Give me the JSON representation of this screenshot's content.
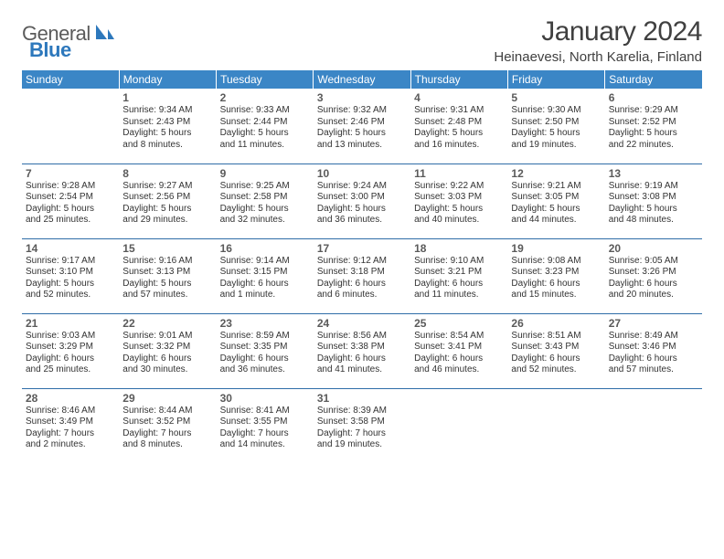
{
  "colors": {
    "header_bg": "#3b86c6",
    "header_text": "#ffffff",
    "row_border": "#2f6da8",
    "logo_grey": "#5b5b5b",
    "logo_blue": "#2d78bc",
    "title_color": "#404040",
    "daynum_color": "#5a5a5a",
    "cell_text": "#333333",
    "page_bg": "#ffffff"
  },
  "typography": {
    "title_fontsize": 30,
    "location_fontsize": 15,
    "weekday_fontsize": 12,
    "daynum_fontsize": 12,
    "cell_fontsize": 10
  },
  "logo": {
    "text1": "General",
    "text2": "Blue"
  },
  "title": "January 2024",
  "location": "Heinaevesi, North Karelia, Finland",
  "weekdays": [
    "Sunday",
    "Monday",
    "Tuesday",
    "Wednesday",
    "Thursday",
    "Friday",
    "Saturday"
  ],
  "weeks": [
    [
      {
        "day": "",
        "sunrise": "",
        "sunset": "",
        "daylight1": "",
        "daylight2": ""
      },
      {
        "day": "1",
        "sunrise": "Sunrise: 9:34 AM",
        "sunset": "Sunset: 2:43 PM",
        "daylight1": "Daylight: 5 hours",
        "daylight2": "and 8 minutes."
      },
      {
        "day": "2",
        "sunrise": "Sunrise: 9:33 AM",
        "sunset": "Sunset: 2:44 PM",
        "daylight1": "Daylight: 5 hours",
        "daylight2": "and 11 minutes."
      },
      {
        "day": "3",
        "sunrise": "Sunrise: 9:32 AM",
        "sunset": "Sunset: 2:46 PM",
        "daylight1": "Daylight: 5 hours",
        "daylight2": "and 13 minutes."
      },
      {
        "day": "4",
        "sunrise": "Sunrise: 9:31 AM",
        "sunset": "Sunset: 2:48 PM",
        "daylight1": "Daylight: 5 hours",
        "daylight2": "and 16 minutes."
      },
      {
        "day": "5",
        "sunrise": "Sunrise: 9:30 AM",
        "sunset": "Sunset: 2:50 PM",
        "daylight1": "Daylight: 5 hours",
        "daylight2": "and 19 minutes."
      },
      {
        "day": "6",
        "sunrise": "Sunrise: 9:29 AM",
        "sunset": "Sunset: 2:52 PM",
        "daylight1": "Daylight: 5 hours",
        "daylight2": "and 22 minutes."
      }
    ],
    [
      {
        "day": "7",
        "sunrise": "Sunrise: 9:28 AM",
        "sunset": "Sunset: 2:54 PM",
        "daylight1": "Daylight: 5 hours",
        "daylight2": "and 25 minutes."
      },
      {
        "day": "8",
        "sunrise": "Sunrise: 9:27 AM",
        "sunset": "Sunset: 2:56 PM",
        "daylight1": "Daylight: 5 hours",
        "daylight2": "and 29 minutes."
      },
      {
        "day": "9",
        "sunrise": "Sunrise: 9:25 AM",
        "sunset": "Sunset: 2:58 PM",
        "daylight1": "Daylight: 5 hours",
        "daylight2": "and 32 minutes."
      },
      {
        "day": "10",
        "sunrise": "Sunrise: 9:24 AM",
        "sunset": "Sunset: 3:00 PM",
        "daylight1": "Daylight: 5 hours",
        "daylight2": "and 36 minutes."
      },
      {
        "day": "11",
        "sunrise": "Sunrise: 9:22 AM",
        "sunset": "Sunset: 3:03 PM",
        "daylight1": "Daylight: 5 hours",
        "daylight2": "and 40 minutes."
      },
      {
        "day": "12",
        "sunrise": "Sunrise: 9:21 AM",
        "sunset": "Sunset: 3:05 PM",
        "daylight1": "Daylight: 5 hours",
        "daylight2": "and 44 minutes."
      },
      {
        "day": "13",
        "sunrise": "Sunrise: 9:19 AM",
        "sunset": "Sunset: 3:08 PM",
        "daylight1": "Daylight: 5 hours",
        "daylight2": "and 48 minutes."
      }
    ],
    [
      {
        "day": "14",
        "sunrise": "Sunrise: 9:17 AM",
        "sunset": "Sunset: 3:10 PM",
        "daylight1": "Daylight: 5 hours",
        "daylight2": "and 52 minutes."
      },
      {
        "day": "15",
        "sunrise": "Sunrise: 9:16 AM",
        "sunset": "Sunset: 3:13 PM",
        "daylight1": "Daylight: 5 hours",
        "daylight2": "and 57 minutes."
      },
      {
        "day": "16",
        "sunrise": "Sunrise: 9:14 AM",
        "sunset": "Sunset: 3:15 PM",
        "daylight1": "Daylight: 6 hours",
        "daylight2": "and 1 minute."
      },
      {
        "day": "17",
        "sunrise": "Sunrise: 9:12 AM",
        "sunset": "Sunset: 3:18 PM",
        "daylight1": "Daylight: 6 hours",
        "daylight2": "and 6 minutes."
      },
      {
        "day": "18",
        "sunrise": "Sunrise: 9:10 AM",
        "sunset": "Sunset: 3:21 PM",
        "daylight1": "Daylight: 6 hours",
        "daylight2": "and 11 minutes."
      },
      {
        "day": "19",
        "sunrise": "Sunrise: 9:08 AM",
        "sunset": "Sunset: 3:23 PM",
        "daylight1": "Daylight: 6 hours",
        "daylight2": "and 15 minutes."
      },
      {
        "day": "20",
        "sunrise": "Sunrise: 9:05 AM",
        "sunset": "Sunset: 3:26 PM",
        "daylight1": "Daylight: 6 hours",
        "daylight2": "and 20 minutes."
      }
    ],
    [
      {
        "day": "21",
        "sunrise": "Sunrise: 9:03 AM",
        "sunset": "Sunset: 3:29 PM",
        "daylight1": "Daylight: 6 hours",
        "daylight2": "and 25 minutes."
      },
      {
        "day": "22",
        "sunrise": "Sunrise: 9:01 AM",
        "sunset": "Sunset: 3:32 PM",
        "daylight1": "Daylight: 6 hours",
        "daylight2": "and 30 minutes."
      },
      {
        "day": "23",
        "sunrise": "Sunrise: 8:59 AM",
        "sunset": "Sunset: 3:35 PM",
        "daylight1": "Daylight: 6 hours",
        "daylight2": "and 36 minutes."
      },
      {
        "day": "24",
        "sunrise": "Sunrise: 8:56 AM",
        "sunset": "Sunset: 3:38 PM",
        "daylight1": "Daylight: 6 hours",
        "daylight2": "and 41 minutes."
      },
      {
        "day": "25",
        "sunrise": "Sunrise: 8:54 AM",
        "sunset": "Sunset: 3:41 PM",
        "daylight1": "Daylight: 6 hours",
        "daylight2": "and 46 minutes."
      },
      {
        "day": "26",
        "sunrise": "Sunrise: 8:51 AM",
        "sunset": "Sunset: 3:43 PM",
        "daylight1": "Daylight: 6 hours",
        "daylight2": "and 52 minutes."
      },
      {
        "day": "27",
        "sunrise": "Sunrise: 8:49 AM",
        "sunset": "Sunset: 3:46 PM",
        "daylight1": "Daylight: 6 hours",
        "daylight2": "and 57 minutes."
      }
    ],
    [
      {
        "day": "28",
        "sunrise": "Sunrise: 8:46 AM",
        "sunset": "Sunset: 3:49 PM",
        "daylight1": "Daylight: 7 hours",
        "daylight2": "and 2 minutes."
      },
      {
        "day": "29",
        "sunrise": "Sunrise: 8:44 AM",
        "sunset": "Sunset: 3:52 PM",
        "daylight1": "Daylight: 7 hours",
        "daylight2": "and 8 minutes."
      },
      {
        "day": "30",
        "sunrise": "Sunrise: 8:41 AM",
        "sunset": "Sunset: 3:55 PM",
        "daylight1": "Daylight: 7 hours",
        "daylight2": "and 14 minutes."
      },
      {
        "day": "31",
        "sunrise": "Sunrise: 8:39 AM",
        "sunset": "Sunset: 3:58 PM",
        "daylight1": "Daylight: 7 hours",
        "daylight2": "and 19 minutes."
      },
      {
        "day": "",
        "sunrise": "",
        "sunset": "",
        "daylight1": "",
        "daylight2": ""
      },
      {
        "day": "",
        "sunrise": "",
        "sunset": "",
        "daylight1": "",
        "daylight2": ""
      },
      {
        "day": "",
        "sunrise": "",
        "sunset": "",
        "daylight1": "",
        "daylight2": ""
      }
    ]
  ]
}
